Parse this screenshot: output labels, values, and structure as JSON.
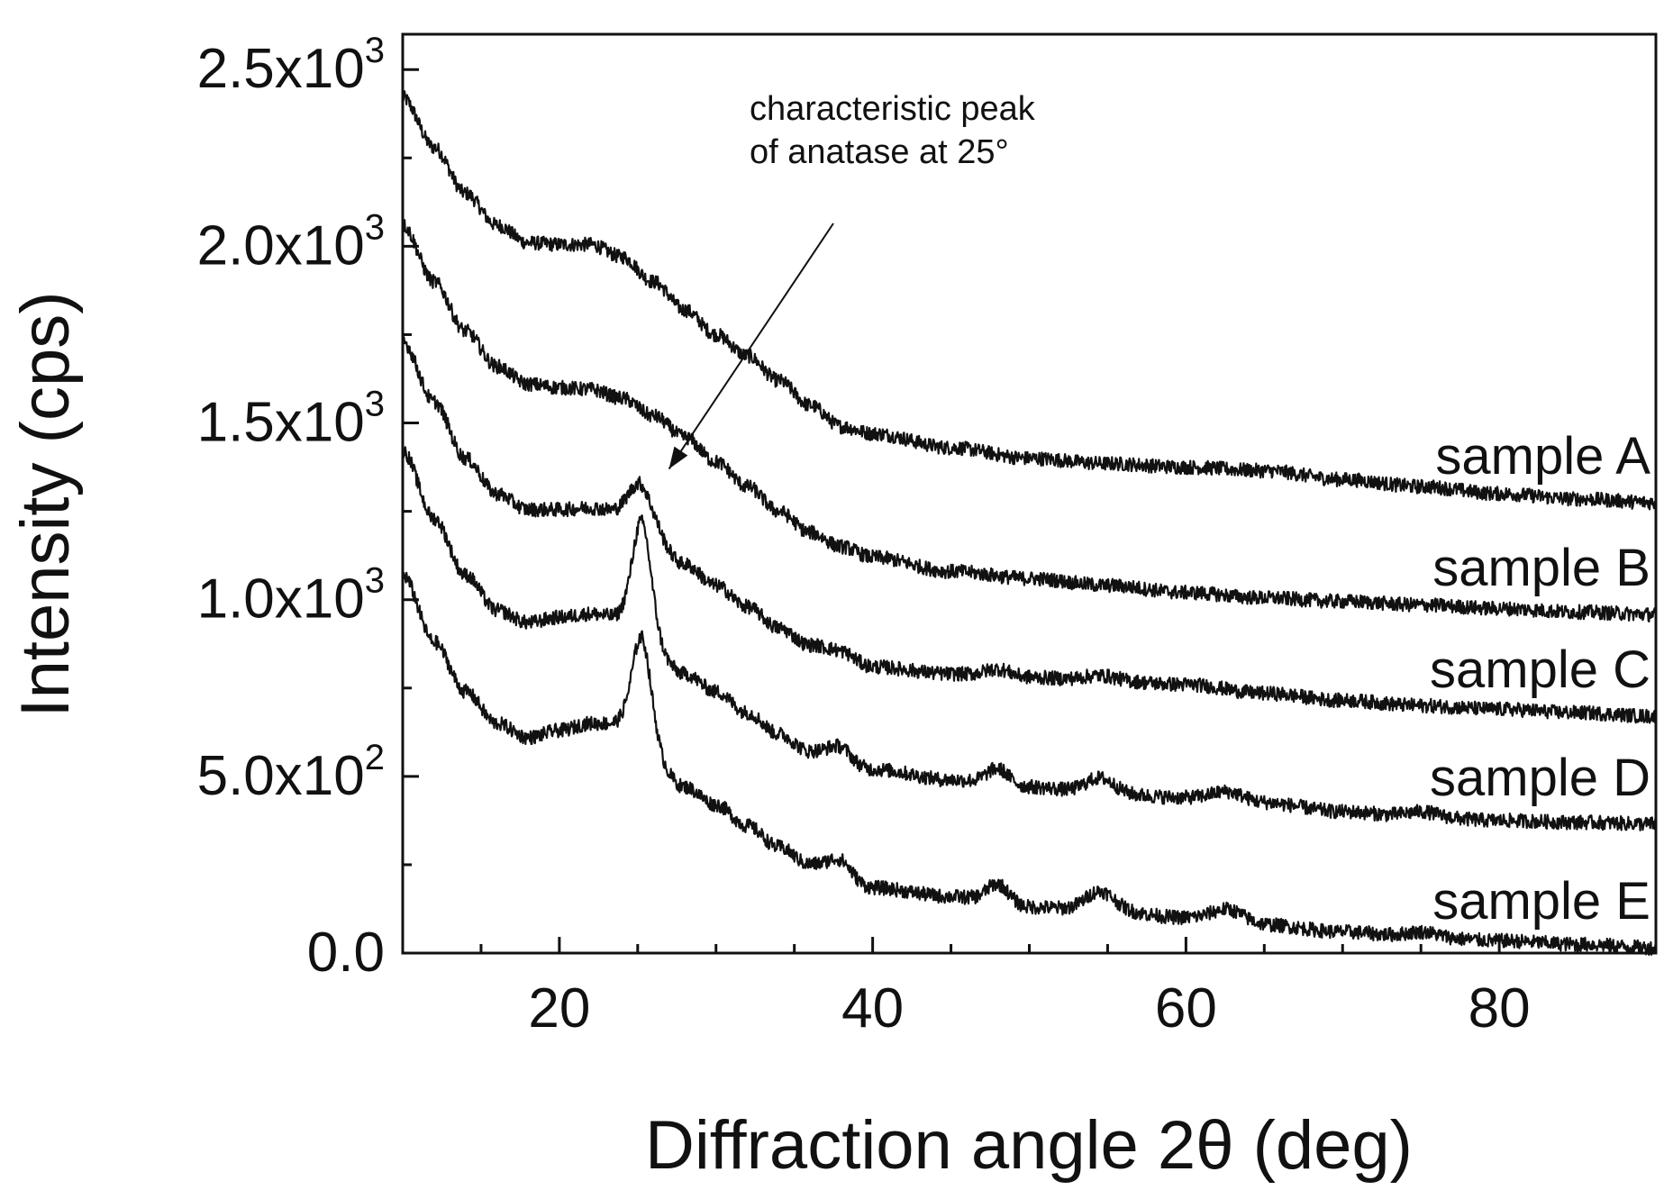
{
  "chart_data": {
    "type": "line",
    "title": "",
    "xlabel": "Diffraction angle 2θ (deg)",
    "ylabel": "Intensity (cps)",
    "xlim": [
      10,
      90
    ],
    "ylim": [
      0,
      2600
    ],
    "x_ticks": [
      20,
      40,
      60,
      80
    ],
    "x_minor_ticks": [
      15,
      25,
      30,
      35,
      45,
      50,
      55,
      65,
      70,
      75,
      85
    ],
    "y_ticks": [
      {
        "value": 0,
        "label": "0.0",
        "exp": ""
      },
      {
        "value": 500,
        "label": "5.0x10",
        "exp": "2"
      },
      {
        "value": 1000,
        "label": "1.0x10",
        "exp": "3"
      },
      {
        "value": 1500,
        "label": "1.5x10",
        "exp": "3"
      },
      {
        "value": 2000,
        "label": "2.0x10",
        "exp": "3"
      },
      {
        "value": 2500,
        "label": "2.5x10",
        "exp": "3"
      }
    ],
    "y_minor_ticks": [
      250,
      750,
      1250,
      1750,
      2250
    ],
    "annotation": {
      "lines": [
        "characteristic peak",
        "of anatase at 25°"
      ],
      "arrow_to": {
        "x": 27,
        "y": 1370
      }
    },
    "series": [
      {
        "name": "sample A",
        "x": [
          10,
          12,
          14,
          16,
          18,
          20,
          22,
          24,
          26,
          28,
          30,
          32,
          34,
          36,
          38,
          40,
          45,
          50,
          55,
          60,
          65,
          70,
          75,
          80,
          85,
          90
        ],
        "y": [
          2420,
          2280,
          2150,
          2060,
          2010,
          2005,
          2005,
          1970,
          1900,
          1820,
          1750,
          1690,
          1620,
          1550,
          1490,
          1470,
          1430,
          1400,
          1385,
          1375,
          1365,
          1340,
          1320,
          1300,
          1285,
          1275
        ],
        "peaks": []
      },
      {
        "name": "sample B",
        "x": [
          10,
          12,
          14,
          16,
          18,
          20,
          22,
          24,
          26,
          28,
          30,
          32,
          34,
          36,
          38,
          40,
          45,
          50,
          55,
          60,
          65,
          70,
          75,
          80,
          85,
          90
        ],
        "y": [
          2060,
          1900,
          1760,
          1660,
          1610,
          1600,
          1595,
          1570,
          1520,
          1460,
          1390,
          1320,
          1250,
          1190,
          1150,
          1120,
          1080,
          1060,
          1040,
          1020,
          1005,
          995,
          985,
          975,
          965,
          958
        ],
        "peaks": []
      },
      {
        "name": "sample C",
        "x": [
          10,
          12,
          14,
          16,
          18,
          20,
          22,
          24,
          26,
          28,
          30,
          32,
          34,
          36,
          38,
          40,
          45,
          50,
          55,
          60,
          65,
          70,
          75,
          80,
          85,
          90
        ],
        "y": [
          1730,
          1560,
          1400,
          1300,
          1255,
          1255,
          1260,
          1250,
          1170,
          1100,
          1040,
          980,
          920,
          870,
          835,
          810,
          790,
          780,
          770,
          760,
          735,
          715,
          700,
          690,
          680,
          670
        ],
        "peaks": [
          {
            "x": 25.3,
            "h": 130,
            "w": 0.7
          },
          {
            "x": 37.8,
            "h": 20,
            "w": 0.8
          },
          {
            "x": 48.0,
            "h": 20,
            "w": 0.8
          },
          {
            "x": 54.5,
            "h": 15,
            "w": 1.0
          }
        ]
      },
      {
        "name": "sample D",
        "x": [
          10,
          12,
          14,
          16,
          18,
          20,
          22,
          24,
          26,
          28,
          30,
          32,
          34,
          36,
          38,
          40,
          45,
          50,
          55,
          60,
          65,
          70,
          75,
          80,
          85,
          90
        ],
        "y": [
          1420,
          1230,
          1070,
          970,
          935,
          950,
          960,
          950,
          850,
          790,
          740,
          680,
          620,
          570,
          540,
          520,
          490,
          470,
          450,
          440,
          425,
          400,
          385,
          375,
          370,
          365
        ],
        "peaks": [
          {
            "x": 25.3,
            "h": 340,
            "w": 0.6
          },
          {
            "x": 37.8,
            "h": 45,
            "w": 0.7
          },
          {
            "x": 48.0,
            "h": 45,
            "w": 0.7
          },
          {
            "x": 54.5,
            "h": 45,
            "w": 0.9
          },
          {
            "x": 62.7,
            "h": 25,
            "w": 1.0
          },
          {
            "x": 75.0,
            "h": 15,
            "w": 1.0
          }
        ]
      },
      {
        "name": "sample E",
        "x": [
          10,
          12,
          14,
          16,
          18,
          20,
          22,
          24,
          26,
          28,
          30,
          32,
          34,
          36,
          38,
          40,
          45,
          50,
          55,
          60,
          65,
          70,
          75,
          80,
          85,
          90
        ],
        "y": [
          1070,
          880,
          740,
          650,
          610,
          630,
          650,
          650,
          540,
          470,
          420,
          360,
          300,
          250,
          215,
          185,
          160,
          130,
          120,
          100,
          80,
          60,
          45,
          35,
          25,
          15
        ],
        "peaks": [
          {
            "x": 25.3,
            "h": 320,
            "w": 0.6
          },
          {
            "x": 37.8,
            "h": 50,
            "w": 0.7
          },
          {
            "x": 48.0,
            "h": 55,
            "w": 0.7
          },
          {
            "x": 54.5,
            "h": 55,
            "w": 0.9
          },
          {
            "x": 62.7,
            "h": 35,
            "w": 1.0
          },
          {
            "x": 75.0,
            "h": 15,
            "w": 1.0
          }
        ]
      }
    ]
  }
}
